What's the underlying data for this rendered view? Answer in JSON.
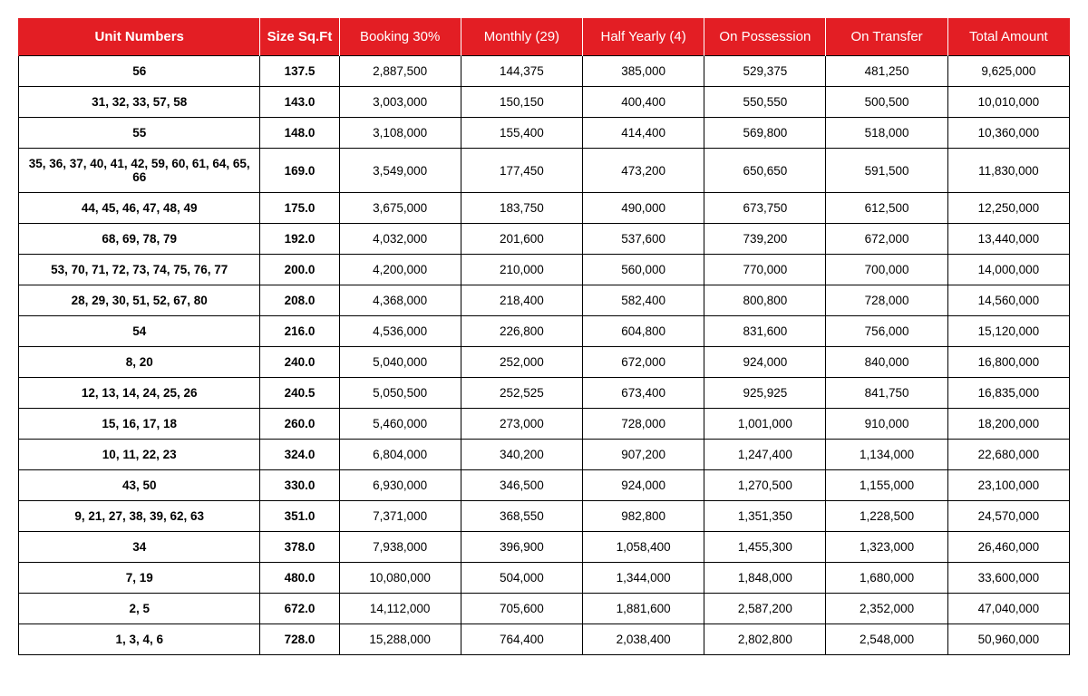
{
  "table": {
    "header_bg": "#e31e24",
    "header_fg": "#ffffff",
    "border_color": "#000000",
    "columns": [
      "Unit Numbers",
      "Size Sq.Ft",
      "Booking 30%",
      "Monthly (29)",
      "Half Yearly (4)",
      "On Possession",
      "On Transfer",
      "Total Amount"
    ],
    "rows": [
      [
        "56",
        "137.5",
        "2,887,500",
        "144,375",
        "385,000",
        "529,375",
        "481,250",
        "9,625,000"
      ],
      [
        "31, 32, 33, 57, 58",
        "143.0",
        "3,003,000",
        "150,150",
        "400,400",
        "550,550",
        "500,500",
        "10,010,000"
      ],
      [
        "55",
        "148.0",
        "3,108,000",
        "155,400",
        "414,400",
        "569,800",
        "518,000",
        "10,360,000"
      ],
      [
        "35, 36, 37, 40, 41, 42, 59, 60, 61, 64, 65, 66",
        "169.0",
        "3,549,000",
        "177,450",
        "473,200",
        "650,650",
        "591,500",
        "11,830,000"
      ],
      [
        "44, 45, 46, 47, 48, 49",
        "175.0",
        "3,675,000",
        "183,750",
        "490,000",
        "673,750",
        "612,500",
        "12,250,000"
      ],
      [
        "68, 69, 78, 79",
        "192.0",
        "4,032,000",
        "201,600",
        "537,600",
        "739,200",
        "672,000",
        "13,440,000"
      ],
      [
        "53, 70, 71, 72, 73, 74, 75, 76, 77",
        "200.0",
        "4,200,000",
        "210,000",
        "560,000",
        "770,000",
        "700,000",
        "14,000,000"
      ],
      [
        "28, 29, 30, 51, 52, 67, 80",
        "208.0",
        "4,368,000",
        "218,400",
        "582,400",
        "800,800",
        "728,000",
        "14,560,000"
      ],
      [
        "54",
        "216.0",
        "4,536,000",
        "226,800",
        "604,800",
        "831,600",
        "756,000",
        "15,120,000"
      ],
      [
        "8, 20",
        "240.0",
        "5,040,000",
        "252,000",
        "672,000",
        "924,000",
        "840,000",
        "16,800,000"
      ],
      [
        "12, 13, 14, 24, 25, 26",
        "240.5",
        "5,050,500",
        "252,525",
        "673,400",
        "925,925",
        "841,750",
        "16,835,000"
      ],
      [
        "15, 16, 17, 18",
        "260.0",
        "5,460,000",
        "273,000",
        "728,000",
        "1,001,000",
        "910,000",
        "18,200,000"
      ],
      [
        "10, 11, 22, 23",
        "324.0",
        "6,804,000",
        "340,200",
        "907,200",
        "1,247,400",
        "1,134,000",
        "22,680,000"
      ],
      [
        "43, 50",
        "330.0",
        "6,930,000",
        "346,500",
        "924,000",
        "1,270,500",
        "1,155,000",
        "23,100,000"
      ],
      [
        "9, 21, 27, 38, 39, 62, 63",
        "351.0",
        "7,371,000",
        "368,550",
        "982,800",
        "1,351,350",
        "1,228,500",
        "24,570,000"
      ],
      [
        "34",
        "378.0",
        "7,938,000",
        "396,900",
        "1,058,400",
        "1,455,300",
        "1,323,000",
        "26,460,000"
      ],
      [
        "7, 19",
        "480.0",
        "10,080,000",
        "504,000",
        "1,344,000",
        "1,848,000",
        "1,680,000",
        "33,600,000"
      ],
      [
        "2, 5",
        "672.0",
        "14,112,000",
        "705,600",
        "1,881,600",
        "2,587,200",
        "2,352,000",
        "47,040,000"
      ],
      [
        "1, 3, 4, 6",
        "728.0",
        "15,288,000",
        "764,400",
        "2,038,400",
        "2,802,800",
        "2,548,000",
        "50,960,000"
      ]
    ]
  }
}
